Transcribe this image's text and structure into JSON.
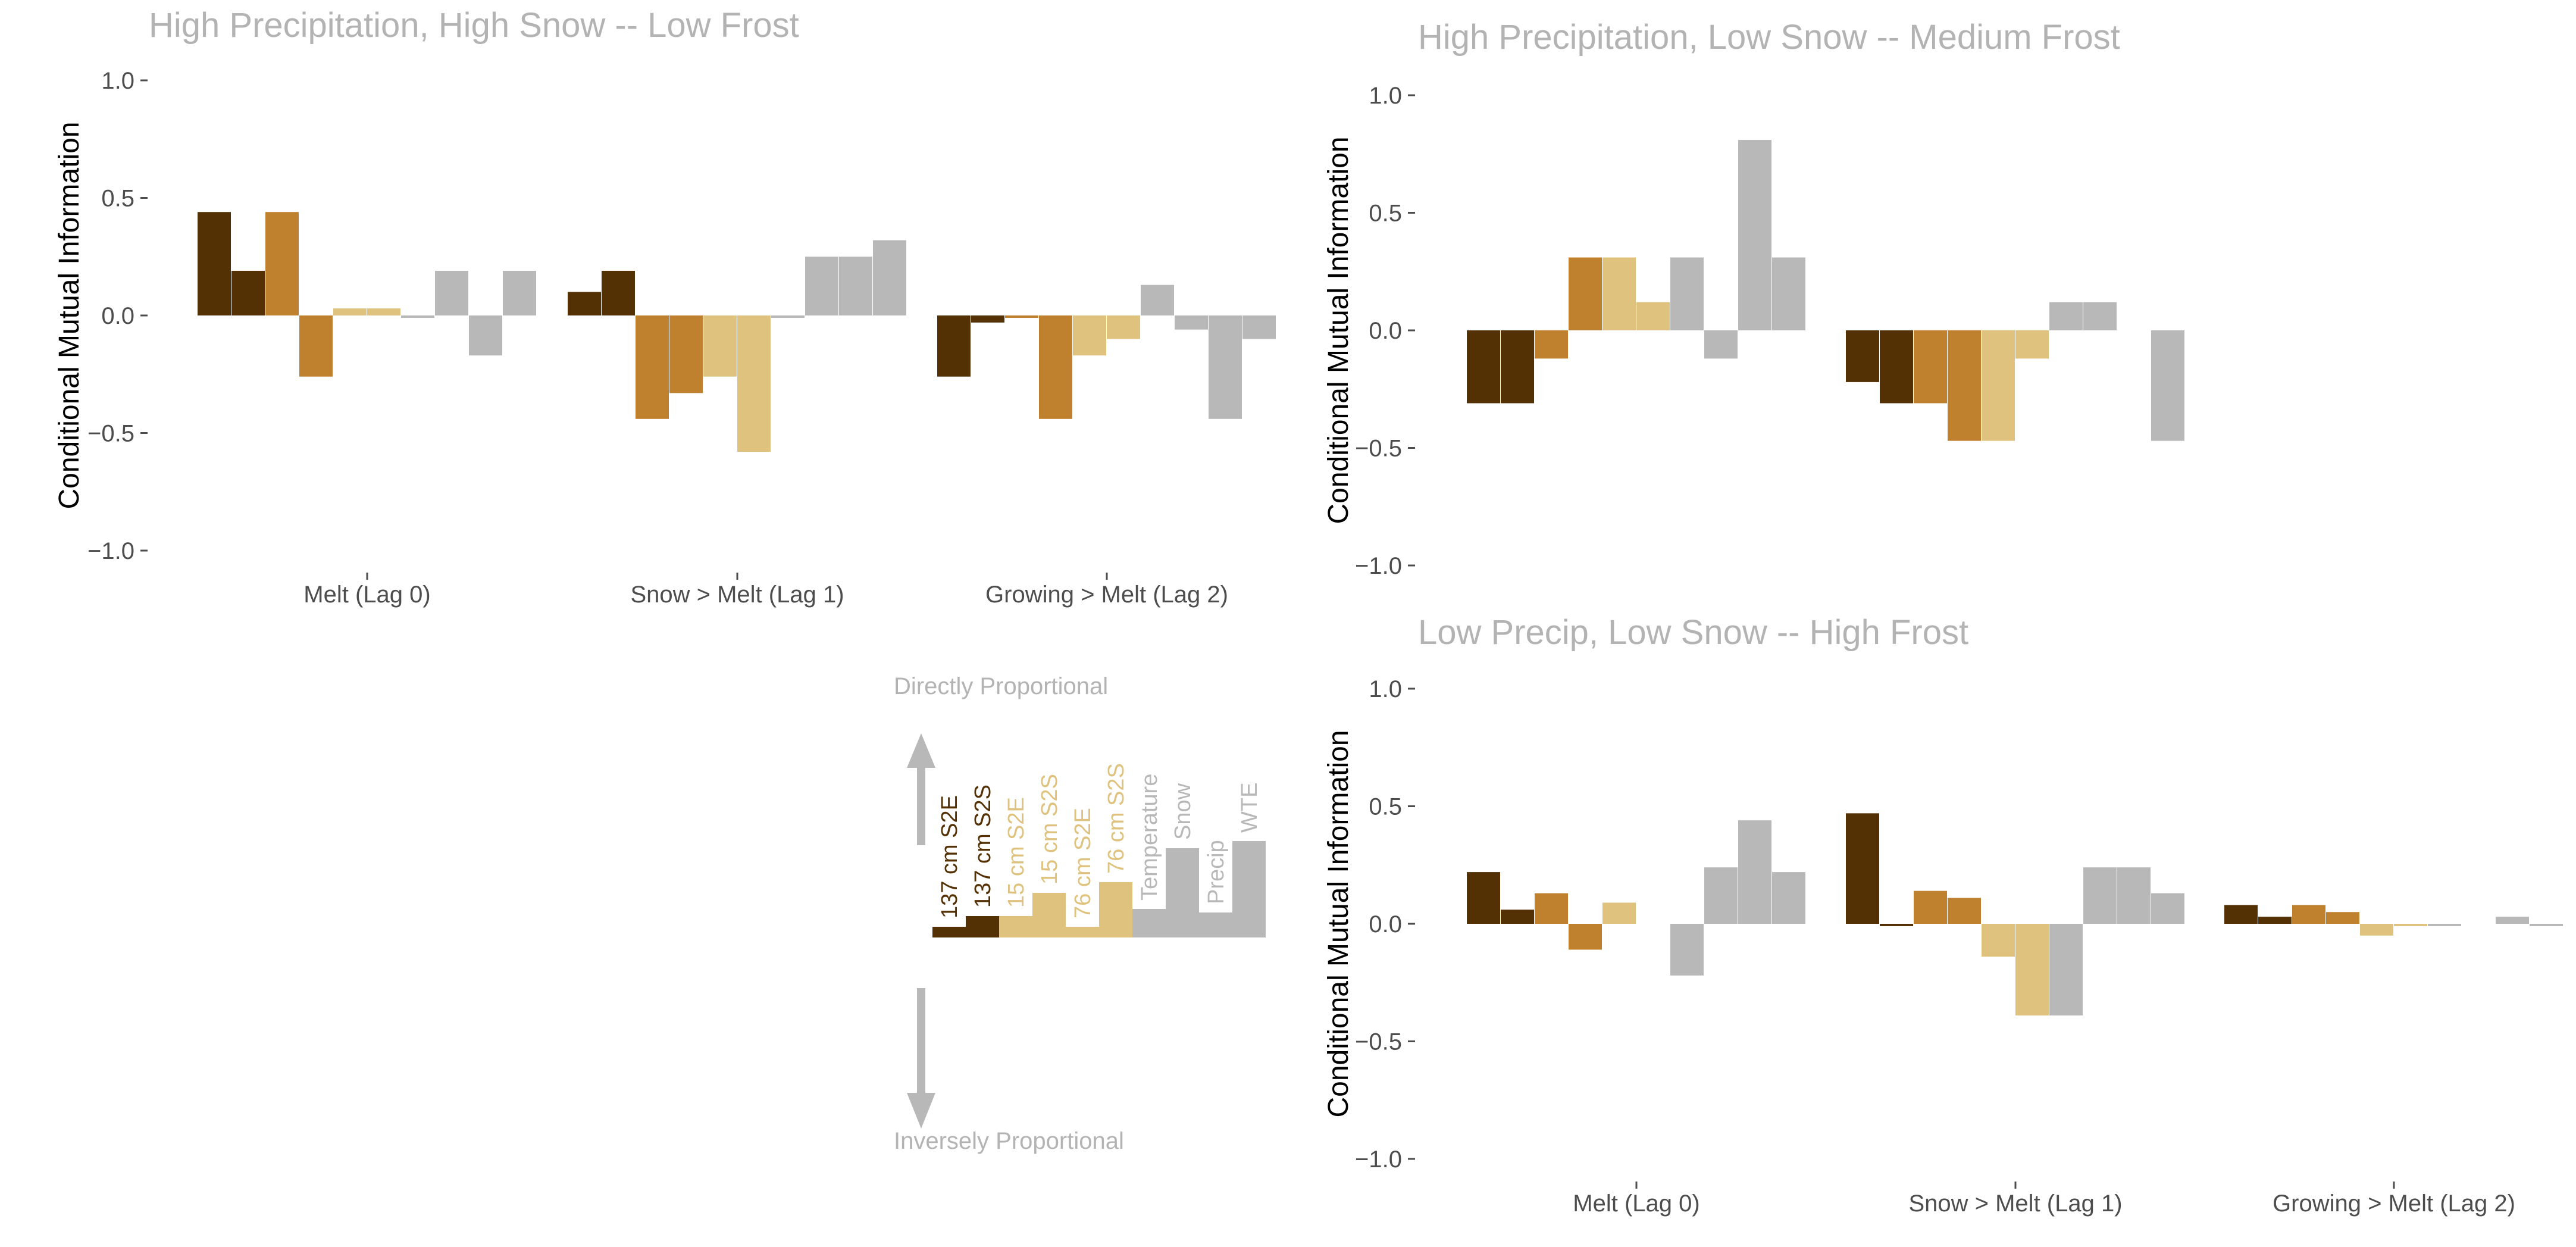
{
  "colors": {
    "dark_brown": "#543005",
    "mid_brown": "#bf812d",
    "light_tan": "#dfc27d",
    "gray": "#b8b8b8",
    "title": "#b3b3b3",
    "tick": "#4d4d4d"
  },
  "legend": {
    "up_label": "Directly Proportional",
    "down_label": "Inversely Proportional",
    "items": [
      {
        "label": "137 cm S2E",
        "color": "#543005",
        "text_color": "#543005",
        "value": 0.3
      },
      {
        "label": "137 cm S2S",
        "color": "#543005",
        "text_color": "#543005",
        "value": 0.6
      },
      {
        "label": "15 cm S2E",
        "color": "#dfc27d",
        "text_color": "#dfc27d",
        "value": 0.6
      },
      {
        "label": "15 cm S2S",
        "color": "#dfc27d",
        "text_color": "#dfc27d",
        "value": 1.25
      },
      {
        "label": "76 cm S2E",
        "color": "#dfc27d",
        "text_color": "#dfc27d",
        "value": 0.3
      },
      {
        "label": "76 cm S2S",
        "color": "#dfc27d",
        "text_color": "#dfc27d",
        "value": 1.55
      },
      {
        "label": "Temperature",
        "color": "#b8b8b8",
        "text_color": "#b8b8b8",
        "value": 0.8
      },
      {
        "label": "Snow",
        "color": "#b8b8b8",
        "text_color": "#b8b8b8",
        "value": 2.5
      },
      {
        "label": "Precip",
        "color": "#b8b8b8",
        "text_color": "#b8b8b8",
        "value": 0.7
      },
      {
        "label": "WTE",
        "color": "#b8b8b8",
        "text_color": "#b8b8b8",
        "value": 2.7
      }
    ]
  },
  "chart_data": [
    {
      "type": "bar",
      "title": "High Precipitation, High Snow -- Low Frost",
      "ylabel": "Conditional Mutual Information",
      "ylim": [
        -1.0,
        1.0
      ],
      "yticks": [
        "1.0",
        "0.5",
        "0.0",
        "−0.5",
        "−1.0"
      ],
      "ytick_values": [
        1.0,
        0.5,
        0.0,
        -0.5,
        -1.0
      ],
      "show_xticks": true,
      "categories": [
        "Melt (Lag 0)",
        "Snow > Melt (Lag 1)",
        "Growing > Melt (Lag 2)"
      ],
      "bar_colors": [
        "#543005",
        "#543005",
        "#bf812d",
        "#bf812d",
        "#dfc27d",
        "#dfc27d",
        "#b8b8b8",
        "#b8b8b8",
        "#b8b8b8",
        "#b8b8b8"
      ],
      "groups": [
        {
          "values": [
            0.44,
            0.19,
            0.44,
            -0.26,
            0.03,
            0.03,
            -0.01,
            0.19,
            -0.17,
            0.19
          ]
        },
        {
          "values": [
            0.1,
            0.19,
            -0.44,
            -0.33,
            -0.26,
            -0.58,
            -0.01,
            0.25,
            0.25,
            0.32
          ]
        },
        {
          "values": [
            -0.26,
            -0.03,
            -0.01,
            -0.44,
            -0.17,
            -0.1,
            0.13,
            -0.06,
            -0.44,
            -0.1
          ]
        }
      ]
    },
    {
      "type": "bar",
      "title": "High Precipitation, Low Snow -- Medium Frost",
      "ylabel": "Conditional Mutual Information",
      "ylim": [
        -1.0,
        1.0
      ],
      "yticks": [
        "1.0",
        "0.5",
        "0.0",
        "−0.5",
        "−1.0"
      ],
      "ytick_values": [
        1.0,
        0.5,
        0.0,
        -0.5,
        -1.0
      ],
      "show_xticks": false,
      "categories": [
        "",
        "",
        ""
      ],
      "bar_colors": [
        "#543005",
        "#543005",
        "#bf812d",
        "#bf812d",
        "#dfc27d",
        "#dfc27d",
        "#b8b8b8",
        "#b8b8b8",
        "#b8b8b8",
        "#b8b8b8"
      ],
      "groups": [
        {
          "values": [
            -0.31,
            -0.31,
            -0.12,
            0.31,
            0.31,
            0.12,
            0.31,
            -0.12,
            0.81,
            0.31
          ]
        },
        {
          "values": [
            -0.22,
            -0.31,
            -0.31,
            -0.47,
            -0.47,
            -0.12,
            0.12,
            0.12,
            0.0,
            -0.47
          ]
        },
        {
          "values": [
            0,
            0,
            0,
            0,
            0,
            0,
            0,
            0,
            0,
            0
          ]
        }
      ]
    },
    {
      "type": "bar",
      "title": "Low Precip, Low Snow -- High Frost",
      "ylabel": "Conditional Mutual Information",
      "ylim": [
        -1.0,
        1.0
      ],
      "yticks": [
        "1.0",
        "0.5",
        "0.0",
        "−0.5",
        "−1.0"
      ],
      "ytick_values": [
        1.0,
        0.5,
        0.0,
        -0.5,
        -1.0
      ],
      "show_xticks": true,
      "categories": [
        "Melt (Lag 0)",
        "Snow > Melt (Lag 1)",
        "Growing > Melt (Lag 2)"
      ],
      "bar_colors": [
        "#543005",
        "#543005",
        "#bf812d",
        "#bf812d",
        "#dfc27d",
        "#dfc27d",
        "#b8b8b8",
        "#b8b8b8",
        "#b8b8b8",
        "#b8b8b8"
      ],
      "groups": [
        {
          "values": [
            0.22,
            0.06,
            0.13,
            -0.11,
            0.09,
            0.0,
            -0.22,
            0.24,
            0.44,
            0.22
          ]
        },
        {
          "values": [
            0.47,
            -0.01,
            0.14,
            0.11,
            -0.14,
            -0.39,
            -0.39,
            0.24,
            0.24,
            0.13
          ]
        },
        {
          "values": [
            0.08,
            0.03,
            0.08,
            0.05,
            -0.05,
            -0.01,
            -0.01,
            0.0,
            0.03,
            -0.01
          ]
        }
      ]
    }
  ]
}
